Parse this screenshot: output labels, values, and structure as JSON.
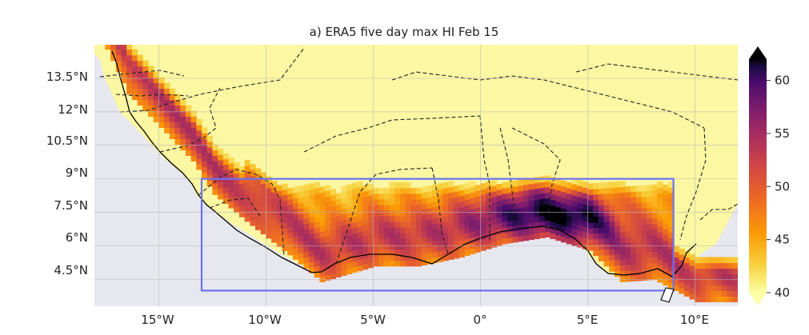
{
  "title": "a) ERA5 five day max HI Feb 15",
  "map": {
    "lat_ticks": [
      "13.5°N",
      "12°N",
      "10.5°N",
      "9°N",
      "7.5°N",
      "6°N",
      "4.5°N"
    ],
    "lon_ticks": [
      "15°W",
      "10°W",
      "5°W",
      "0°",
      "5°E",
      "10°E"
    ],
    "extent": {
      "lon_min": -18,
      "lon_max": 12,
      "lat_min": 3.3,
      "lat_max": 15.0
    },
    "region_box": {
      "lon_min": -13,
      "lon_max": 9,
      "lat_min": 4,
      "lat_max": 9,
      "color": "#6a73f2"
    },
    "ocean_color": "#e7e7ef",
    "land_base_color": "#fbf7a2",
    "gridlines": true
  },
  "colorbar": {
    "min": 40,
    "max": 62,
    "ticks": [
      "60",
      "55",
      "50",
      "45",
      "40"
    ],
    "tick_values": [
      60,
      55,
      50,
      45,
      40
    ],
    "colormap": "inferno_r",
    "extend": "both"
  }
}
